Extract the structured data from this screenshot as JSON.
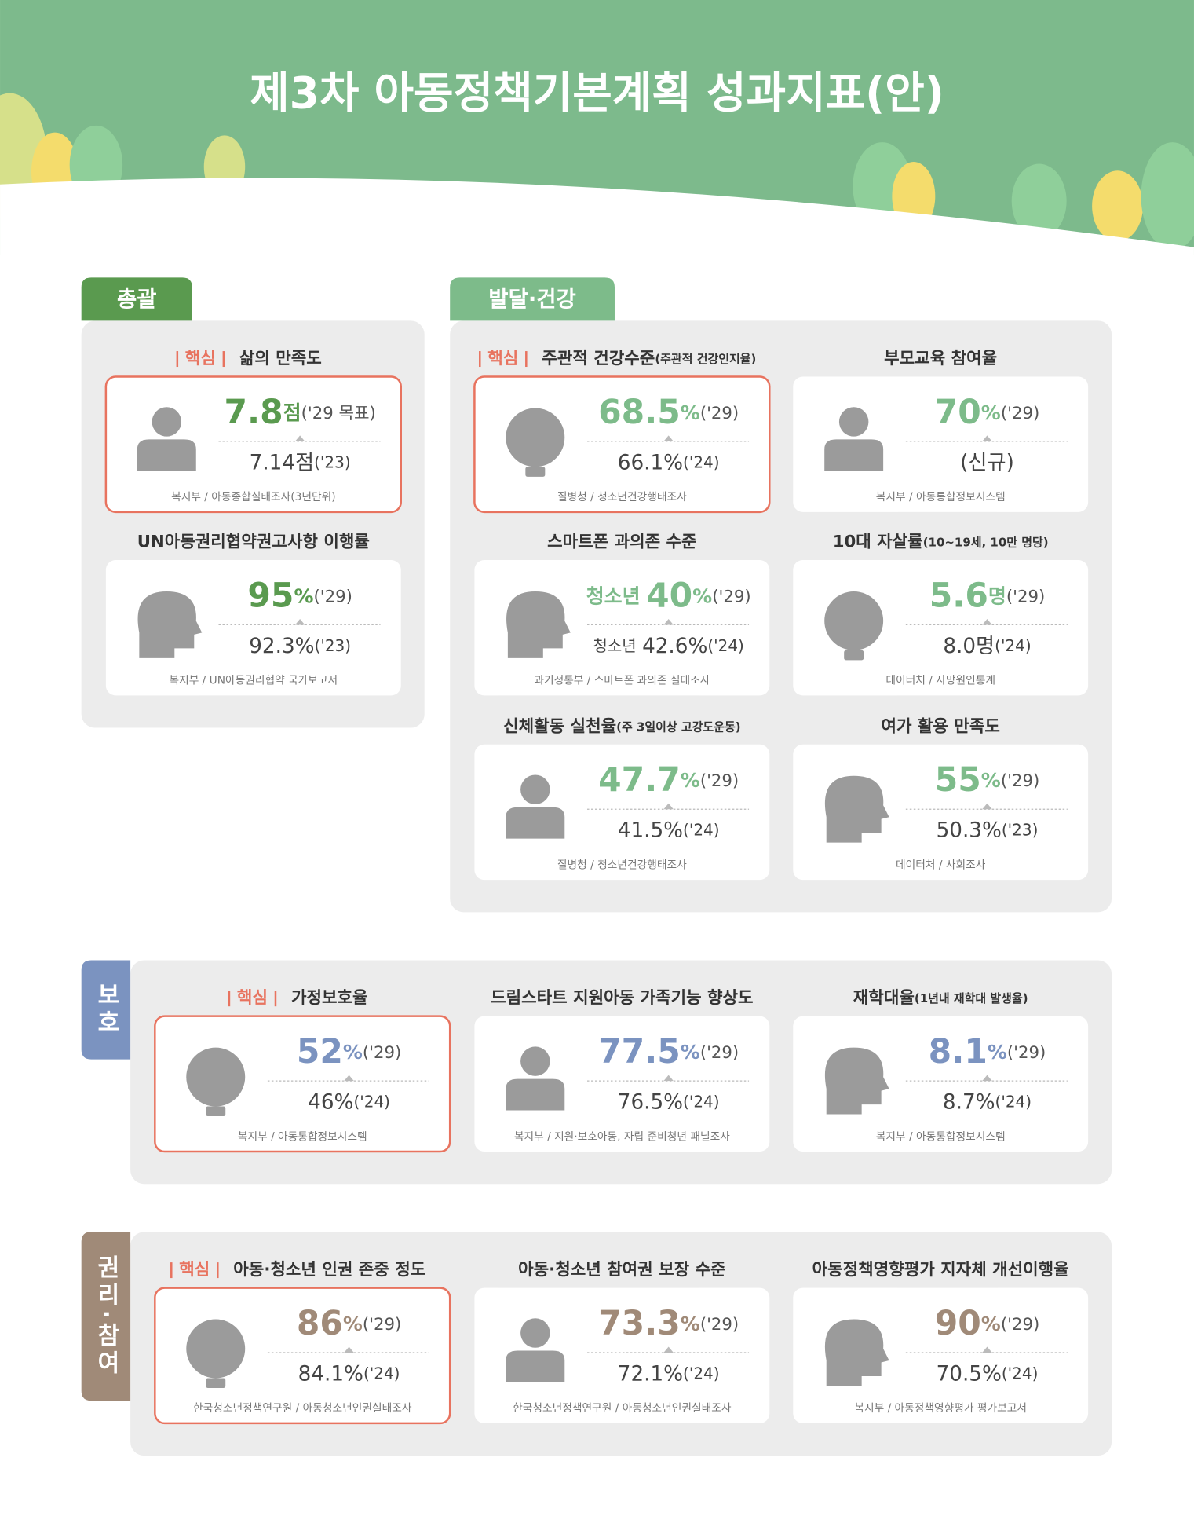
{
  "header": {
    "title": "제3차 아동정책기본계획 성과지표(안)"
  },
  "sections": [
    {
      "label": "총괄",
      "color": "#5a9a4f",
      "cards": [
        {
          "core": "핵심",
          "title": "삶의 만족도",
          "target": "7.8",
          "target_unit": "점",
          "target_year": "('29 목표)",
          "current": "7.14점",
          "current_year": "('23)",
          "source": "복지부 / 아동종합실태조사(3년단위)"
        },
        {
          "title": "UN아동권리협약권고사항 이행률",
          "target": "95",
          "target_unit": "%",
          "target_year": "('29)",
          "current": "92.3%",
          "current_year": "('23)",
          "source": "복지부 / UN아동권리협약 국가보고서"
        }
      ]
    },
    {
      "label": "발달·건강",
      "color": "#7dbb8a",
      "cards": [
        {
          "core": "핵심",
          "title": "주관적 건강수준",
          "title_note": "(주관적 건강인지율)",
          "target": "68.5",
          "target_unit": "%",
          "target_year": "('29)",
          "current": "66.1%",
          "current_year": "('24)",
          "source": "질병청 / 청소년건강행태조사"
        },
        {
          "title": "부모교육 참여율",
          "target": "70",
          "target_unit": "%",
          "target_year": "('29)",
          "current": "(신규)",
          "source": "복지부 / 아동통합정보시스템"
        },
        {
          "title": "스마트폰 과의존 수준",
          "target_prefix": "청소년",
          "target": "40",
          "target_unit": "%",
          "target_year": "('29)",
          "current_prefix": "청소년",
          "current": "42.6%",
          "current_year": "('24)",
          "source": "과기정통부 / 스마트폰 과의존 실태조사"
        },
        {
          "title": "10대 자살률",
          "title_note": "(10~19세, 10만 명당)",
          "target": "5.6",
          "target_unit": "명",
          "target_year": "('29)",
          "current": "8.0명",
          "current_year": "('24)",
          "source": "데이터처 / 사망원인통계"
        },
        {
          "title": "신체활동 실천율",
          "title_note": "(주 3일이상 고강도운동)",
          "target": "47.7",
          "target_unit": "%",
          "target_year": "('29)",
          "current": "41.5%",
          "current_year": "('24)",
          "source": "질병청 / 청소년건강행태조사"
        },
        {
          "title": "여가 활용 만족도",
          "target": "55",
          "target_unit": "%",
          "target_year": "('29)",
          "current": "50.3%",
          "current_year": "('23)",
          "source": "데이터처 / 사회조사"
        }
      ]
    },
    {
      "label": "보호",
      "color": "#7b93c0",
      "cards": [
        {
          "core": "핵심",
          "title": "가정보호율",
          "target": "52",
          "target_unit": "%",
          "target_year": "('29)",
          "current": "46%",
          "current_year": "('24)",
          "source": "복지부 / 아동통합정보시스템"
        },
        {
          "title": "드림스타트 지원아동 가족기능 향상도",
          "target": "77.5",
          "target_unit": "%",
          "target_year": "('29)",
          "current": "76.5%",
          "current_year": "('24)",
          "source": "복지부 / 지원·보호아동, 자립 준비청년 패널조사"
        },
        {
          "title": "재학대율",
          "title_note": "(1년내 재학대 발생율)",
          "target": "8.1",
          "target_unit": "%",
          "target_year": "('29)",
          "current": "8.7%",
          "current_year": "('24)",
          "source": "복지부 / 아동통합정보시스템"
        }
      ]
    },
    {
      "label": "권리·참여",
      "color": "#a08a78",
      "cards": [
        {
          "core": "핵심",
          "title": "아동·청소년 인권 존중 정도",
          "target": "86",
          "target_unit": "%",
          "target_year": "('29)",
          "current": "84.1%",
          "current_year": "('24)",
          "source": "한국청소년정책연구원 / 아동청소년인권실태조사"
        },
        {
          "title": "아동·청소년 참여권 보장 수준",
          "target": "73.3",
          "target_unit": "%",
          "target_year": "('29)",
          "current": "72.1%",
          "current_year": "('24)",
          "source": "한국청소년정책연구원 / 아동청소년인권실태조사"
        },
        {
          "title": "아동정책영향평가 지자체 개선이행율",
          "target": "90",
          "target_unit": "%",
          "target_year": "('29)",
          "current": "70.5%",
          "current_year": "('24)",
          "source": "복지부 / 아동정책영향평가 평가보고서"
        }
      ]
    }
  ]
}
